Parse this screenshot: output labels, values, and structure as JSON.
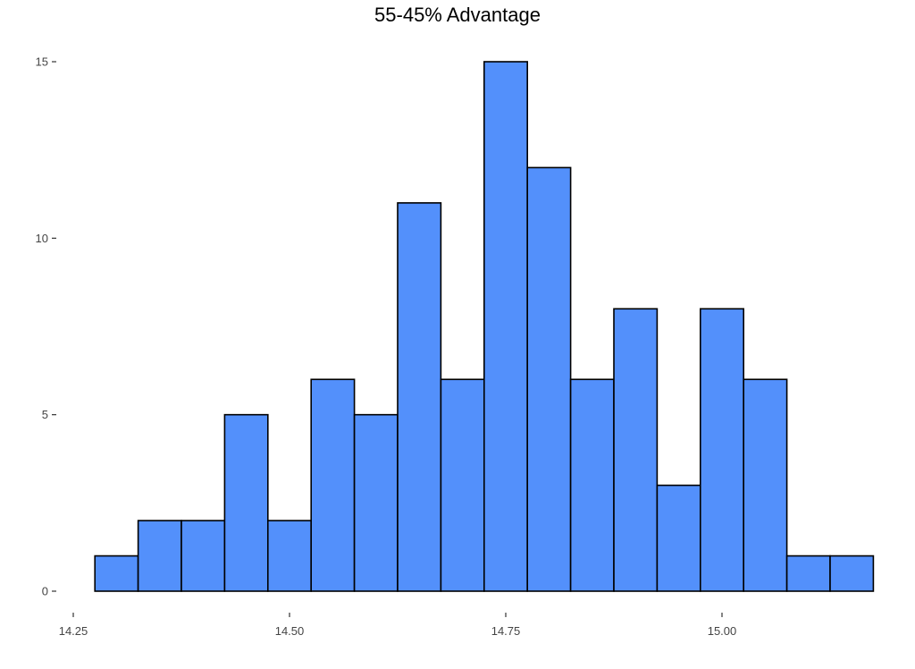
{
  "chart_data": {
    "type": "bar",
    "title": "55-45% Advantage",
    "xlabel": "",
    "ylabel": "",
    "bin_width": 0.05,
    "bins": [
      {
        "start": 14.275,
        "end": 14.325,
        "count": 1
      },
      {
        "start": 14.325,
        "end": 14.375,
        "count": 2
      },
      {
        "start": 14.375,
        "end": 14.425,
        "count": 2
      },
      {
        "start": 14.425,
        "end": 14.475,
        "count": 5
      },
      {
        "start": 14.475,
        "end": 14.525,
        "count": 2
      },
      {
        "start": 14.525,
        "end": 14.575,
        "count": 6
      },
      {
        "start": 14.575,
        "end": 14.625,
        "count": 5
      },
      {
        "start": 14.625,
        "end": 14.675,
        "count": 11
      },
      {
        "start": 14.675,
        "end": 14.725,
        "count": 6
      },
      {
        "start": 14.725,
        "end": 14.775,
        "count": 15
      },
      {
        "start": 14.775,
        "end": 14.825,
        "count": 12
      },
      {
        "start": 14.825,
        "end": 14.875,
        "count": 6
      },
      {
        "start": 14.875,
        "end": 14.925,
        "count": 8
      },
      {
        "start": 14.925,
        "end": 14.975,
        "count": 3
      },
      {
        "start": 14.975,
        "end": 15.025,
        "count": 8
      },
      {
        "start": 15.025,
        "end": 15.075,
        "count": 6
      },
      {
        "start": 15.075,
        "end": 15.125,
        "count": 1
      },
      {
        "start": 15.125,
        "end": 15.175,
        "count": 1
      }
    ],
    "xlim": [
      14.25,
      15.2
    ],
    "ylim": [
      0,
      15.5
    ],
    "x_ticks": [
      {
        "value": 14.25,
        "label": "14.25"
      },
      {
        "value": 14.5,
        "label": "14.50"
      },
      {
        "value": 14.75,
        "label": "14.75"
      },
      {
        "value": 15.0,
        "label": "15.00"
      }
    ],
    "y_ticks": [
      {
        "value": 0,
        "label": "0"
      },
      {
        "value": 5,
        "label": "5"
      },
      {
        "value": 10,
        "label": "10"
      },
      {
        "value": 15,
        "label": "15"
      }
    ],
    "grid": false,
    "bar_color": "#5390fb",
    "bar_outline_color": "#000000"
  }
}
